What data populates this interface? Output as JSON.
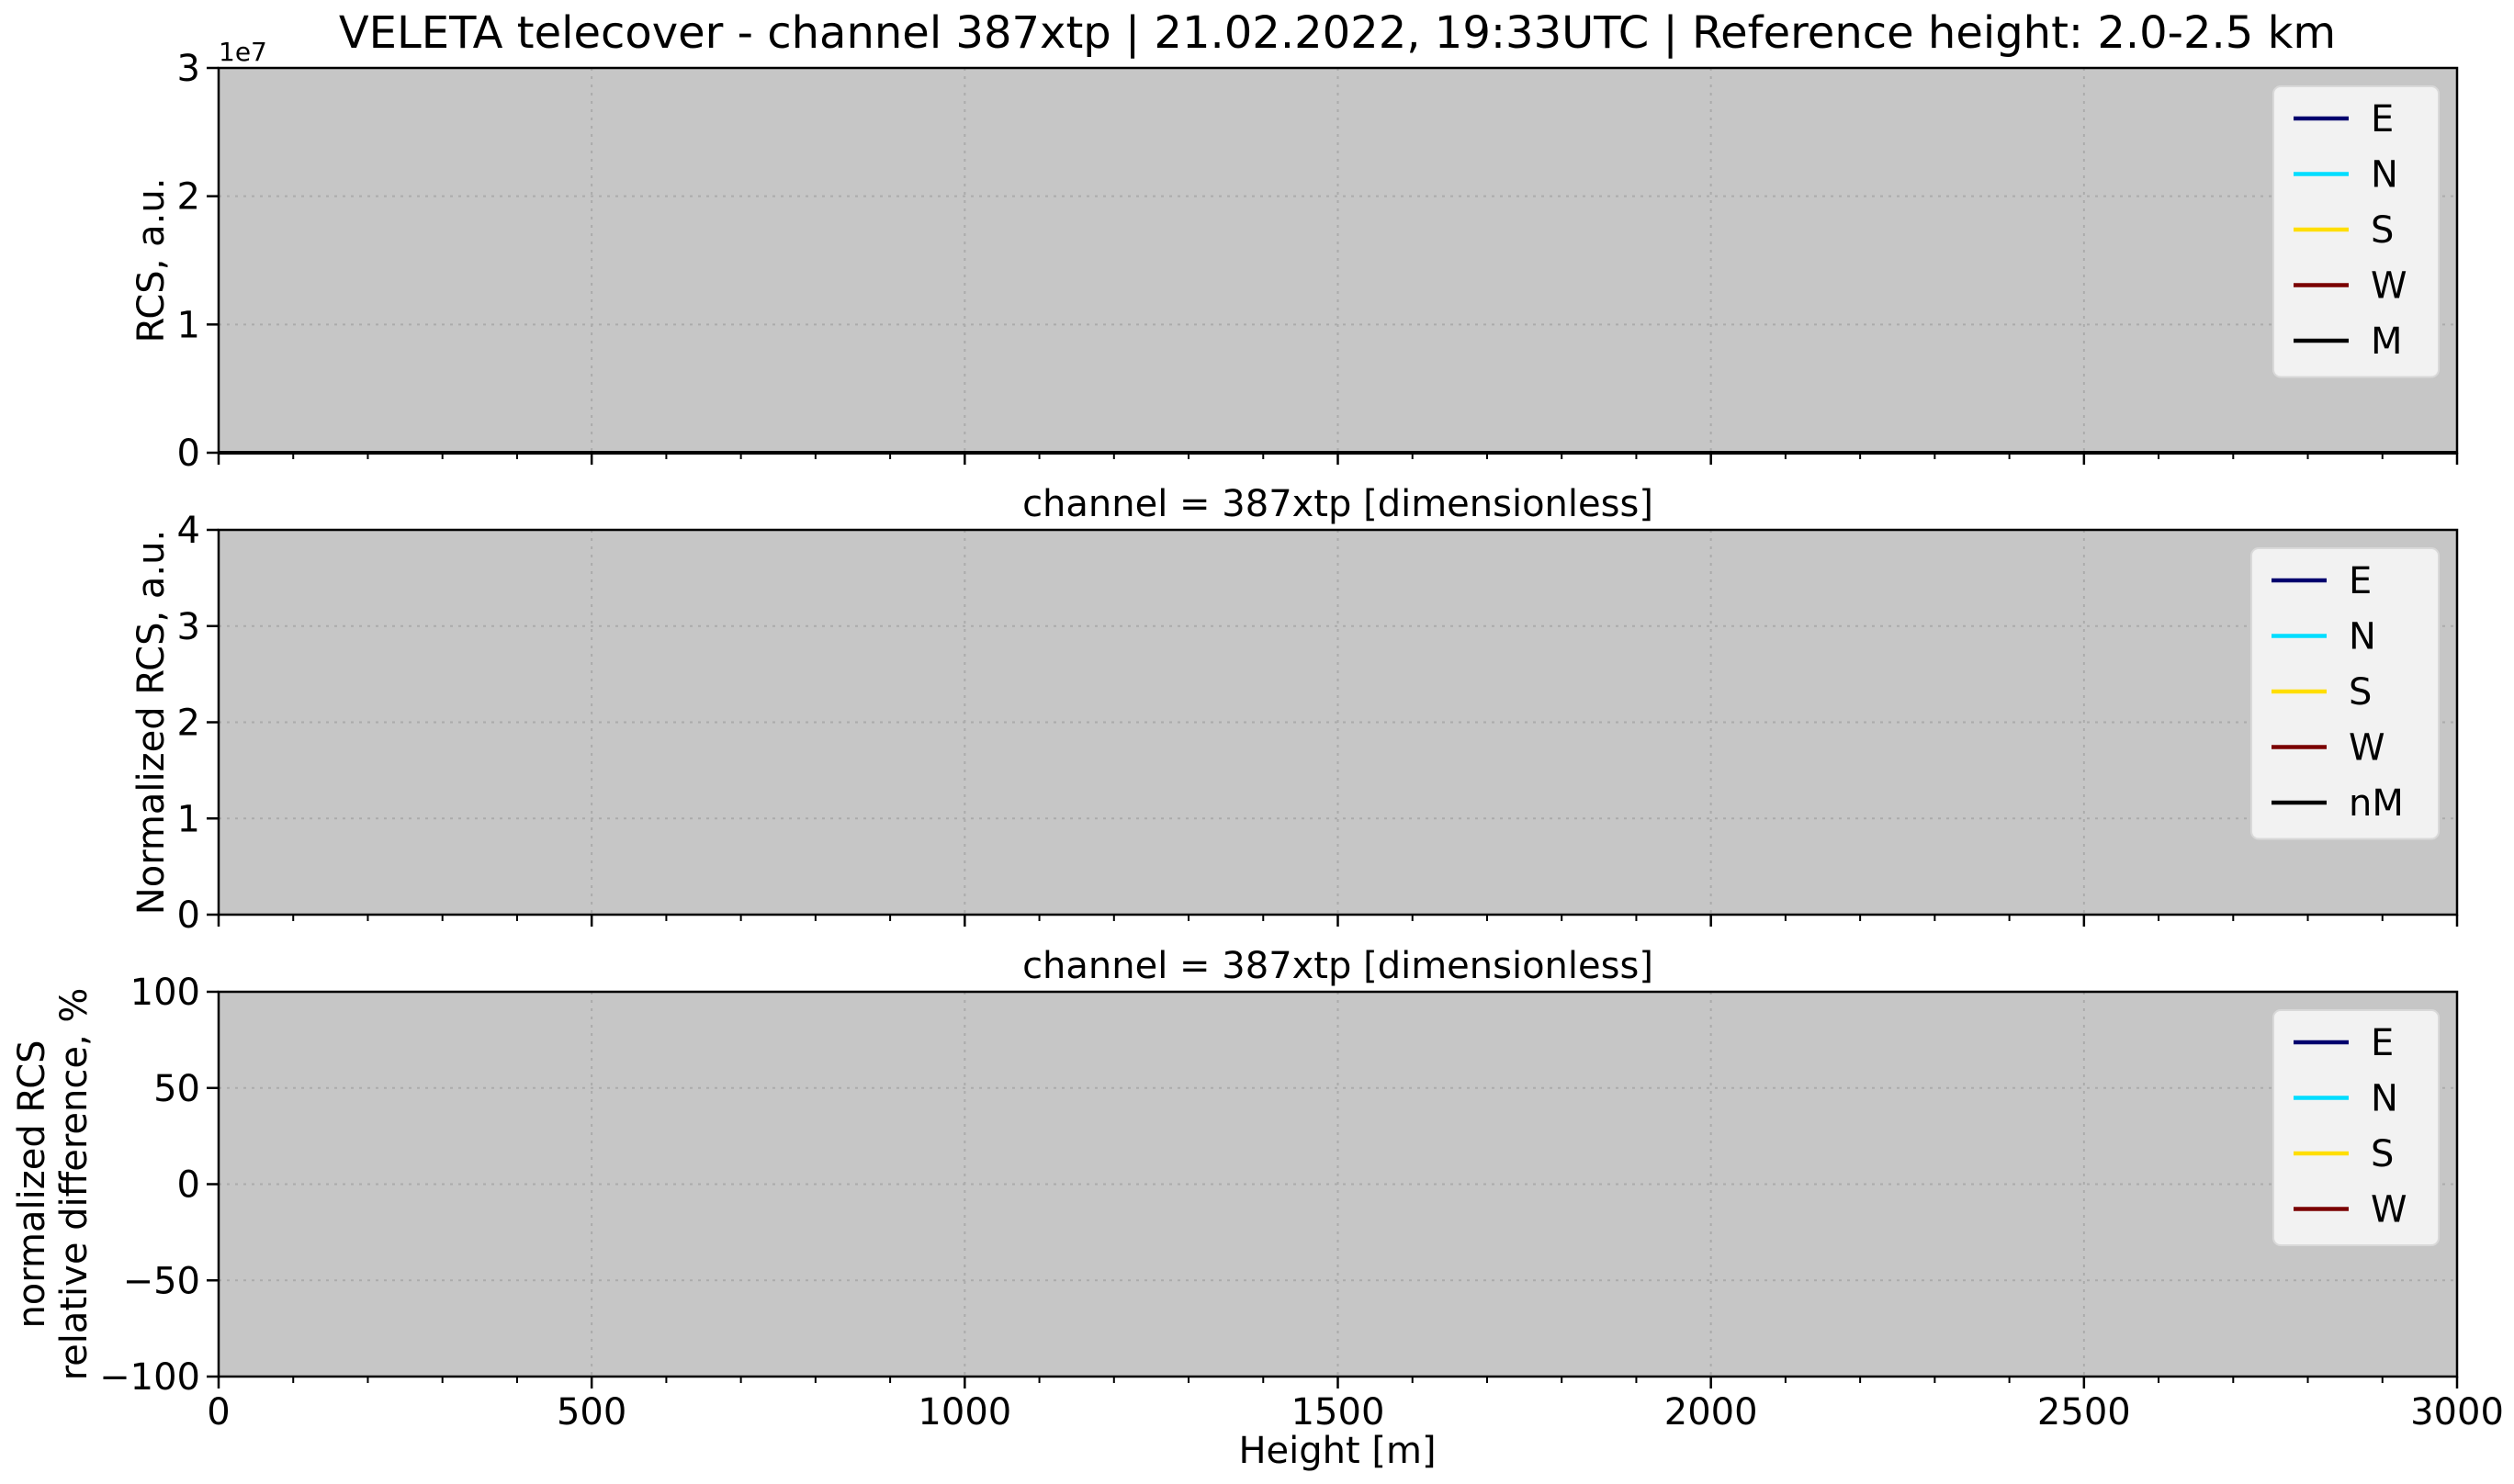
{
  "figure": {
    "title": "VELETA telecover - channel 387xtp | 21.02.2022, 19:33UTC | Reference height: 2.0-2.5 km",
    "xlabel": "Height [m]"
  },
  "chart_data": [
    {
      "type": "line",
      "title": "",
      "xlabel": "",
      "ylabel": "RCS, a.u.",
      "offset_text": "1e7",
      "xlim": [
        0,
        3000
      ],
      "ylim": [
        0,
        30000000
      ],
      "x_ticks": [
        0,
        500,
        1000,
        1500,
        2000,
        2500,
        3000
      ],
      "x_tick_labels": [
        "0",
        "500",
        "1000",
        "1500",
        "2000",
        "2500",
        "3000"
      ],
      "y_ticks": [
        0,
        10000000,
        20000000,
        30000000
      ],
      "y_tick_labels": [
        "0",
        "1",
        "2",
        "3"
      ],
      "grid": true,
      "legend_position": "top-right",
      "series": [
        {
          "name": "E",
          "color": "#00006e",
          "x": [
            0,
            3000
          ],
          "values": [
            0,
            0
          ]
        },
        {
          "name": "N",
          "color": "#00ddff",
          "x": [
            0,
            3000
          ],
          "values": [
            0,
            0
          ]
        },
        {
          "name": "S",
          "color": "#ffde00",
          "x": [
            0,
            3000
          ],
          "values": [
            0,
            0
          ]
        },
        {
          "name": "W",
          "color": "#7a0000",
          "x": [
            0,
            3000
          ],
          "values": [
            0,
            0
          ]
        },
        {
          "name": "M",
          "color": "#000000",
          "x": [
            0,
            3000
          ],
          "values": [
            0,
            0
          ]
        }
      ]
    },
    {
      "type": "line",
      "title": "channel = 387xtp [dimensionless]",
      "xlabel": "",
      "ylabel": "Normalized RCS, a.u.",
      "offset_text": "",
      "xlim": [
        0,
        3000
      ],
      "ylim": [
        0,
        4
      ],
      "x_ticks": [
        0,
        500,
        1000,
        1500,
        2000,
        2500,
        3000
      ],
      "x_tick_labels": [
        "0",
        "500",
        "1000",
        "1500",
        "2000",
        "2500",
        "3000"
      ],
      "y_ticks": [
        0,
        1,
        2,
        3,
        4
      ],
      "y_tick_labels": [
        "0",
        "1",
        "2",
        "3",
        "4"
      ],
      "grid": true,
      "legend_position": "top-right",
      "series": [
        {
          "name": "E",
          "color": "#00006e",
          "x": [],
          "values": []
        },
        {
          "name": "N",
          "color": "#00ddff",
          "x": [],
          "values": []
        },
        {
          "name": "S",
          "color": "#ffde00",
          "x": [],
          "values": []
        },
        {
          "name": "W",
          "color": "#7a0000",
          "x": [],
          "values": []
        },
        {
          "name": "nM",
          "color": "#000000",
          "x": [],
          "values": []
        }
      ]
    },
    {
      "type": "line",
      "title": "channel = 387xtp [dimensionless]",
      "xlabel": "Height [m]",
      "ylabel": "normalized RCS\nrelative difference, %",
      "offset_text": "",
      "xlim": [
        0,
        3000
      ],
      "ylim": [
        -100,
        100
      ],
      "x_ticks": [
        0,
        500,
        1000,
        1500,
        2000,
        2500,
        3000
      ],
      "x_tick_labels": [
        "0",
        "500",
        "1000",
        "1500",
        "2000",
        "2500",
        "3000"
      ],
      "y_ticks": [
        -100,
        -50,
        0,
        50,
        100
      ],
      "y_tick_labels": [
        "−100",
        "−50",
        "0",
        "50",
        "100"
      ],
      "grid": true,
      "legend_position": "top-right",
      "series": [
        {
          "name": "E",
          "color": "#00006e",
          "x": [],
          "values": []
        },
        {
          "name": "N",
          "color": "#00ddff",
          "x": [],
          "values": []
        },
        {
          "name": "S",
          "color": "#ffde00",
          "x": [],
          "values": []
        },
        {
          "name": "W",
          "color": "#7a0000",
          "x": [],
          "values": []
        }
      ]
    }
  ]
}
